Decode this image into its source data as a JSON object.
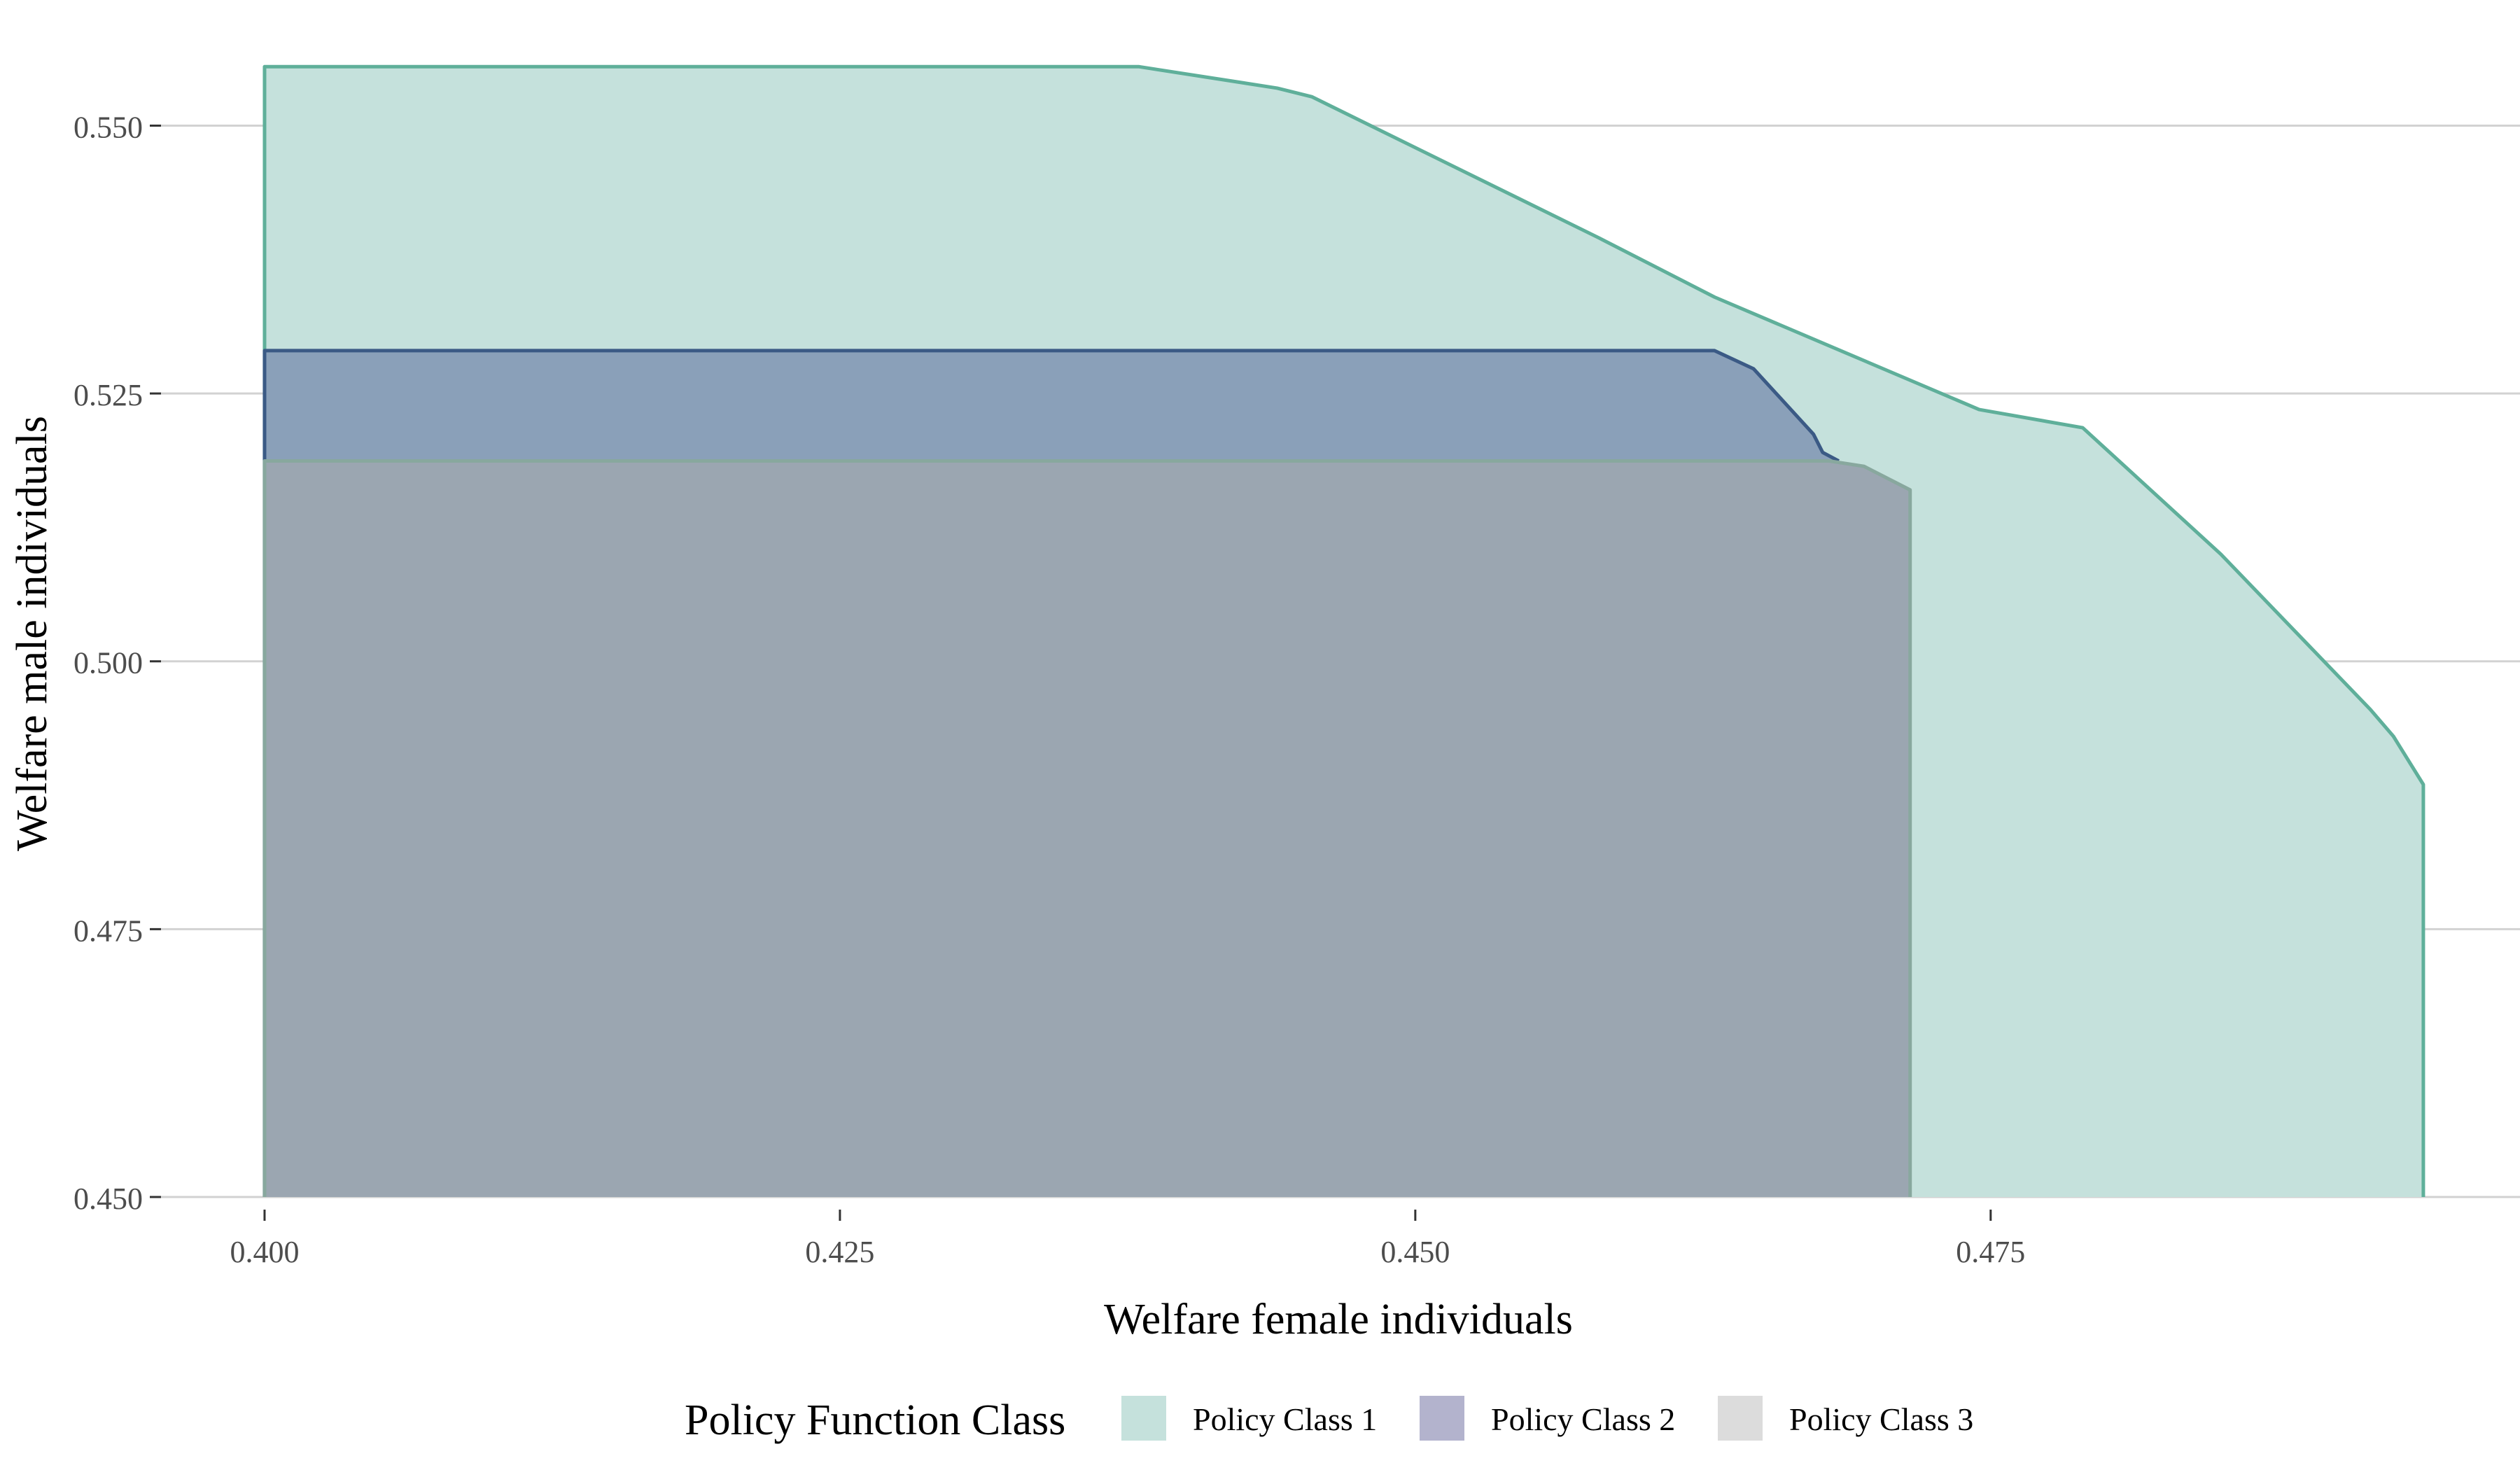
{
  "chart_data": {
    "type": "area",
    "title": "",
    "xlabel": "Welfare female individuals",
    "ylabel": "Welfare male individuals",
    "xlim": [
      0.3955,
      0.498
    ],
    "ylim": [
      0.45,
      0.5565
    ],
    "x_ticks": [
      0.4,
      0.425,
      0.45,
      0.475
    ],
    "x_tick_labels": [
      "0.400",
      "0.425",
      "0.450",
      "0.475"
    ],
    "y_ticks": [
      0.45,
      0.475,
      0.5,
      0.525,
      0.55
    ],
    "y_tick_labels": [
      "0.450",
      "0.475",
      "0.500",
      "0.525",
      "0.550"
    ],
    "grid": "horizontal major",
    "legend": {
      "title": "Policy Function Class",
      "placement": "bottom"
    },
    "series": [
      {
        "name": "Policy Class 1",
        "fill": "#c5e1dc",
        "line": "#5faf9a",
        "frontier_x": [
          0.4,
          0.438,
          0.444,
          0.4455,
          0.458,
          0.463,
          0.4745,
          0.479,
          0.485,
          0.4915,
          0.4925,
          0.4938,
          0.4938
        ],
        "frontier_y": [
          0.5555,
          0.5555,
          0.5535,
          0.5527,
          0.5395,
          0.534,
          0.5235,
          0.5218,
          0.51,
          0.4955,
          0.493,
          0.4885,
          0.45
        ]
      },
      {
        "name": "Policy Class 2",
        "fill": "#8aa0b9",
        "line": "#3b5a85",
        "frontier_x": [
          0.4,
          0.463,
          0.4647,
          0.4673,
          0.4677,
          0.4684,
          0.4684
        ],
        "frontier_y": [
          0.529,
          0.529,
          0.5273,
          0.5212,
          0.5195,
          0.5187,
          0.5187
        ]
      },
      {
        "name": "Policy Class 3",
        "fill": "#9ba6b1",
        "line": "#88a89e",
        "frontier_x": [
          0.4,
          0.468,
          0.4695,
          0.4715,
          0.4715
        ],
        "frontier_y": [
          0.5187,
          0.5187,
          0.5182,
          0.516,
          0.45
        ]
      }
    ],
    "legend_swatches": [
      "#c5e1dc",
      "#b3b3cd",
      "#dcdcdc"
    ]
  }
}
